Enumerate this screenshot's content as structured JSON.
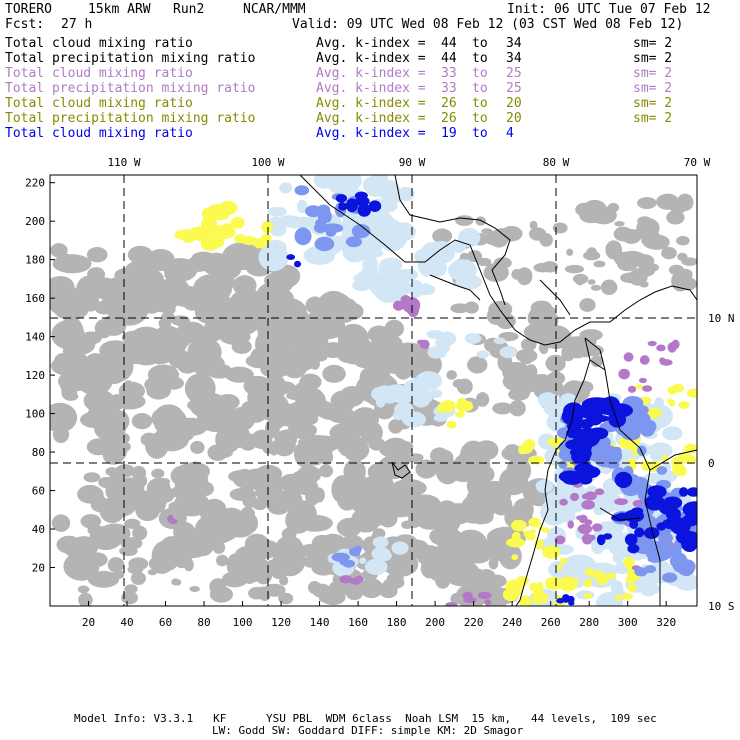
{
  "header": {
    "model": "TORERO",
    "resolution": "15km ARW",
    "run": "Run2",
    "org": "NCAR/MMM",
    "init": "Init: 06 UTC Tue 07 Feb 12",
    "fcst_label": "Fcst:",
    "fcst_hours": "27 h",
    "valid": "Valid: 09 UTC Wed 08 Feb 12 (03 CST Wed 08 Feb 12)"
  },
  "legend": [
    {
      "field": "Total cloud mixing ratio",
      "avg": "Avg. k-index =",
      "from": "44",
      "to_word": "to",
      "to": "34",
      "sm": "sm= 2",
      "color": "#000000"
    },
    {
      "field": "Total precipitation mixing ratio",
      "avg": "Avg. k-index =",
      "from": "44",
      "to_word": "to",
      "to": "34",
      "sm": "sm= 2",
      "color": "#000000"
    },
    {
      "field": "Total cloud mixing ratio",
      "avg": "Avg. k-index =",
      "from": "33",
      "to_word": "to",
      "to": "25",
      "sm": "sm= 2",
      "color": "#b07cc6"
    },
    {
      "field": "Total precipitation mixing ratio",
      "avg": "Avg. k-index =",
      "from": "33",
      "to_word": "to",
      "to": "25",
      "sm": "sm= 2",
      "color": "#b07cc6"
    },
    {
      "field": "Total cloud mixing ratio",
      "avg": "Avg. k-index =",
      "from": "26",
      "to_word": "to",
      "to": "20",
      "sm": "sm= 2",
      "color": "#8a8a00"
    },
    {
      "field": "Total precipitation mixing ratio",
      "avg": "Avg. k-index =",
      "from": "26",
      "to_word": "to",
      "to": "20",
      "sm": "sm= 2",
      "color": "#8a8a00"
    },
    {
      "field": "Total cloud mixing ratio",
      "avg": "Avg. k-index =",
      "from": "19",
      "to_word": "to",
      "to": "4",
      "sm": "",
      "color": "#0000ee"
    }
  ],
  "map": {
    "lon_labels": [
      "110 W",
      "100 W",
      "90 W",
      "80 W",
      "70 W"
    ],
    "lat_labels": [
      "10 N",
      "0",
      "10 S"
    ],
    "x_ticks": [
      "20",
      "40",
      "60",
      "80",
      "100",
      "120",
      "140",
      "160",
      "180",
      "200",
      "220",
      "240",
      "260",
      "280",
      "300",
      "320"
    ],
    "y_ticks": [
      "220",
      "200",
      "180",
      "160",
      "140",
      "120",
      "100",
      "80",
      "60",
      "40",
      "20"
    ],
    "colors": {
      "gray": "#b4b4b4",
      "light_blue": "#d2e6f5",
      "mid_blue": "#7d96f0",
      "dark_blue": "#0a14dc",
      "yellow": "#fafa50",
      "purple": "#b478c8"
    }
  },
  "footer": {
    "line1": "Model Info: V3.3.1   KF      YSU PBL  WDM 6class  Noah LSM  15 km,   44 levels,  109 sec",
    "line2": "LW: Godd SW: Goddard DIFF: simple KM: 2D Smagor"
  }
}
